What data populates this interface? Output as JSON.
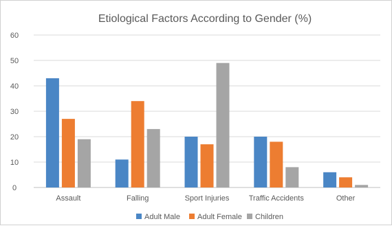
{
  "chart_data": {
    "type": "bar",
    "title": "Etiological Factors According to Gender (%)",
    "xlabel": "",
    "ylabel": "",
    "ylim": [
      0,
      60
    ],
    "yticks": [
      0,
      10,
      20,
      30,
      40,
      50,
      60
    ],
    "grid": true,
    "legend_position": "bottom",
    "categories": [
      "Assault",
      "Falling",
      "Sport Injuries",
      "Traffic Accidents",
      "Other"
    ],
    "series": [
      {
        "name": "Adult Male",
        "color": "#4a86c5",
        "values": [
          43,
          11,
          20,
          20,
          6
        ]
      },
      {
        "name": "Adult Female",
        "color": "#ed7d31",
        "values": [
          27,
          34,
          17,
          18,
          4
        ]
      },
      {
        "name": "Children",
        "color": "#a5a5a5",
        "values": [
          19,
          23,
          49,
          8,
          1
        ]
      }
    ]
  }
}
